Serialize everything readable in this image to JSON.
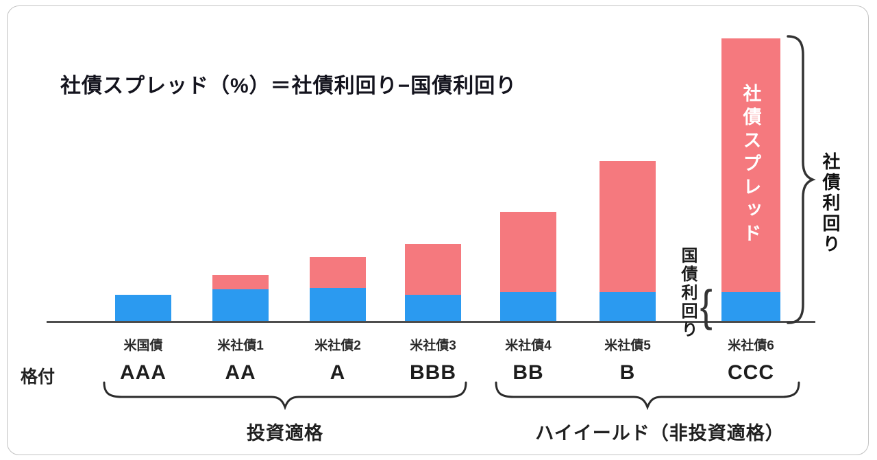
{
  "card": {
    "title": "社債スプレッド（%）＝社債利回り−国債利回り"
  },
  "colors": {
    "bond_yield_blue": "#2B9AF0",
    "spread_red": "#F5797E",
    "axis": "#4d4d4d",
    "text_dark": "#14141e"
  },
  "labels": {
    "rating_axis": "格付",
    "govt_yield": "国債利回り",
    "corp_yield": "社債利回り",
    "investment_grade": "投資適格",
    "high_yield": "ハイイールド（非投資適格）"
  },
  "chart_data": {
    "type": "bar",
    "stacked": true,
    "title": "社債スプレッド（%）＝社債利回り−国債利回り",
    "note": "Conceptual figure: no numeric axis shown; values are relative bar heights in pixels read from the image.",
    "categories": [
      "米国債",
      "米社債1",
      "米社債2",
      "米社債3",
      "米社債4",
      "米社債5",
      "米社債6"
    ],
    "ratings": [
      "AAA",
      "AA",
      "A",
      "BBB",
      "BB",
      "B",
      "CCC"
    ],
    "series": [
      {
        "name": "国債利回り",
        "color": "#2B9AF0",
        "values": [
          38,
          46,
          48,
          38,
          42,
          42,
          42
        ]
      },
      {
        "name": "社債スプレッド",
        "color": "#F5797E",
        "values": [
          0,
          21,
          45,
          74,
          117,
          191,
          370
        ]
      }
    ],
    "annotations": {
      "bar7_inner_label": "社債スプレッド",
      "govt_yield_brace_target": "blue segment of CCC bar",
      "corp_yield_brace_target": "full height of CCC bar"
    },
    "groups": [
      {
        "label": "投資適格",
        "from": "AAA",
        "to": "BBB"
      },
      {
        "label": "ハイイールド（非投資適格）",
        "from": "BB",
        "to": "CCC"
      }
    ],
    "legend_position": "none",
    "grid": false
  }
}
